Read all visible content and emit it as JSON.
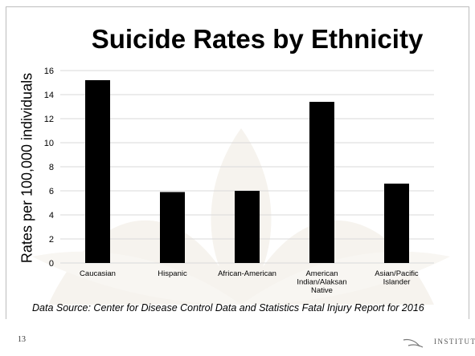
{
  "chart_data": {
    "type": "bar",
    "title": "Suicide Rates by Ethnicity",
    "xlabel": "",
    "ylabel": "Rates per 100,000 individuals",
    "ylim": [
      0,
      16
    ],
    "yticks": [
      0,
      2,
      4,
      6,
      8,
      10,
      12,
      14,
      16
    ],
    "grid": true,
    "categories": [
      [
        "Caucasian"
      ],
      [
        "Hispanic"
      ],
      [
        "African-American"
      ],
      [
        "American",
        "Indian/Alaksan",
        "Native"
      ],
      [
        "Asian/Pacific",
        "Islander"
      ]
    ],
    "values": [
      15.2,
      5.9,
      6.0,
      13.4,
      6.6
    ],
    "colors": {
      "bar": "#000000",
      "grid": "#d9d9d9",
      "text": "#000000"
    }
  },
  "footer": {
    "source": "Data Source: Center for Disease Control Data and Statistics Fatal Injury Report for 2016",
    "page_number": "13",
    "logo_text": "INSTITUTE",
    "logo_icon": "swoosh-logo-icon"
  }
}
